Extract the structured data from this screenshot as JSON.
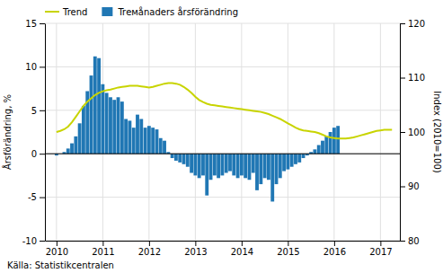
{
  "chart_data": {
    "type": "bar",
    "ylabel": "Årsförändring, %",
    "y2label": "Index (2010=100)",
    "annotations": [
      "Källa: Statistikcentralen"
    ],
    "xlim": [
      2009.75,
      2017.42
    ],
    "xticks": [
      2010,
      2011,
      2012,
      2013,
      2014,
      2015,
      2016,
      2017
    ],
    "ylim": [
      -10,
      15
    ],
    "yticks": [
      -10,
      -5,
      0,
      5,
      10,
      15
    ],
    "y2lim": [
      80,
      120
    ],
    "y2ticks": [
      80,
      90,
      100,
      110,
      120
    ],
    "grid": true,
    "legend": "upper left",
    "series": [
      {
        "name": "Trемånaders årsförändring",
        "type": "bar",
        "color": "#2077b4",
        "x": [
          2010.0,
          2010.083,
          2010.167,
          2010.25,
          2010.333,
          2010.417,
          2010.5,
          2010.583,
          2010.667,
          2010.75,
          2010.833,
          2010.917,
          2011.0,
          2011.083,
          2011.167,
          2011.25,
          2011.333,
          2011.417,
          2011.5,
          2011.583,
          2011.667,
          2011.75,
          2011.833,
          2011.917,
          2012.0,
          2012.083,
          2012.167,
          2012.25,
          2012.333,
          2012.417,
          2012.5,
          2012.583,
          2012.667,
          2012.75,
          2012.833,
          2012.917,
          2013.0,
          2013.083,
          2013.167,
          2013.25,
          2013.333,
          2013.417,
          2013.5,
          2013.583,
          2013.667,
          2013.75,
          2013.833,
          2013.917,
          2014.0,
          2014.083,
          2014.167,
          2014.25,
          2014.333,
          2014.417,
          2014.5,
          2014.583,
          2014.667,
          2014.75,
          2014.833,
          2014.917,
          2015.0,
          2015.083,
          2015.167,
          2015.25,
          2015.333,
          2015.417,
          2015.5,
          2015.583,
          2015.667,
          2015.75,
          2015.833,
          2015.917,
          2016.0,
          2016.083
        ],
        "values": [
          -0.2,
          0.0,
          0.2,
          0.6,
          1.2,
          2.0,
          3.5,
          5.5,
          7.2,
          9.0,
          11.2,
          11.0,
          8.0,
          7.0,
          6.5,
          6.2,
          6.5,
          6.0,
          4.0,
          3.8,
          3.0,
          4.5,
          4.0,
          3.0,
          3.2,
          3.0,
          2.8,
          1.8,
          1.5,
          0.2,
          -0.5,
          -0.8,
          -1.0,
          -1.2,
          -1.5,
          -2.2,
          -2.5,
          -2.8,
          -2.5,
          -4.8,
          -3.0,
          -2.5,
          -2.8,
          -2.5,
          -2.2,
          -2.0,
          -2.5,
          -2.8,
          -2.5,
          -2.8,
          -3.0,
          -2.2,
          -4.2,
          -3.5,
          -2.8,
          -3.0,
          -5.5,
          -3.5,
          -2.8,
          -2.0,
          -1.8,
          -1.5,
          -1.2,
          -1.0,
          -0.5,
          -0.2,
          0.2,
          0.5,
          1.0,
          1.5,
          2.0,
          2.5,
          3.0,
          3.2
        ]
      },
      {
        "name": "Trend",
        "type": "line",
        "color": "#c8d400",
        "axis": "y2",
        "x": [
          2010.0,
          2010.083,
          2010.167,
          2010.25,
          2010.333,
          2010.417,
          2010.5,
          2010.583,
          2010.667,
          2010.75,
          2010.833,
          2010.917,
          2011.0,
          2011.083,
          2011.167,
          2011.25,
          2011.333,
          2011.417,
          2011.5,
          2011.583,
          2011.667,
          2011.75,
          2011.833,
          2011.917,
          2012.0,
          2012.083,
          2012.167,
          2012.25,
          2012.333,
          2012.417,
          2012.5,
          2012.583,
          2012.667,
          2012.75,
          2012.833,
          2012.917,
          2013.0,
          2013.083,
          2013.167,
          2013.25,
          2013.333,
          2013.417,
          2013.5,
          2013.583,
          2013.667,
          2013.75,
          2013.833,
          2013.917,
          2014.0,
          2014.083,
          2014.167,
          2014.25,
          2014.333,
          2014.417,
          2014.5,
          2014.583,
          2014.667,
          2014.75,
          2014.833,
          2014.917,
          2015.0,
          2015.083,
          2015.167,
          2015.25,
          2015.333,
          2015.417,
          2015.5,
          2015.583,
          2015.667,
          2015.75,
          2015.833,
          2015.917,
          2016.0,
          2016.083,
          2016.167,
          2016.25,
          2016.333,
          2016.417,
          2016.5,
          2016.583,
          2016.667,
          2016.75,
          2016.833,
          2016.917,
          2017.0,
          2017.083,
          2017.167,
          2017.25
        ],
        "values": [
          100.0,
          100.2,
          100.5,
          101.0,
          101.8,
          102.8,
          103.8,
          104.8,
          105.6,
          106.2,
          106.8,
          107.2,
          107.5,
          107.7,
          107.8,
          108.0,
          108.2,
          108.3,
          108.4,
          108.5,
          108.5,
          108.5,
          108.4,
          108.3,
          108.2,
          108.3,
          108.5,
          108.7,
          108.9,
          109.0,
          109.0,
          108.9,
          108.7,
          108.3,
          107.8,
          107.2,
          106.5,
          105.9,
          105.5,
          105.2,
          105.0,
          104.9,
          104.8,
          104.7,
          104.6,
          104.5,
          104.4,
          104.3,
          104.2,
          104.1,
          104.0,
          103.9,
          103.8,
          103.7,
          103.5,
          103.3,
          103.0,
          102.7,
          102.4,
          102.0,
          101.6,
          101.2,
          100.8,
          100.5,
          100.3,
          100.2,
          100.1,
          100.0,
          99.8,
          99.5,
          99.2,
          99.0,
          98.9,
          98.8,
          98.8,
          98.8,
          98.9,
          99.0,
          99.2,
          99.4,
          99.6,
          99.8,
          100.0,
          100.2,
          100.3,
          100.4,
          100.4,
          100.4
        ]
      }
    ]
  }
}
